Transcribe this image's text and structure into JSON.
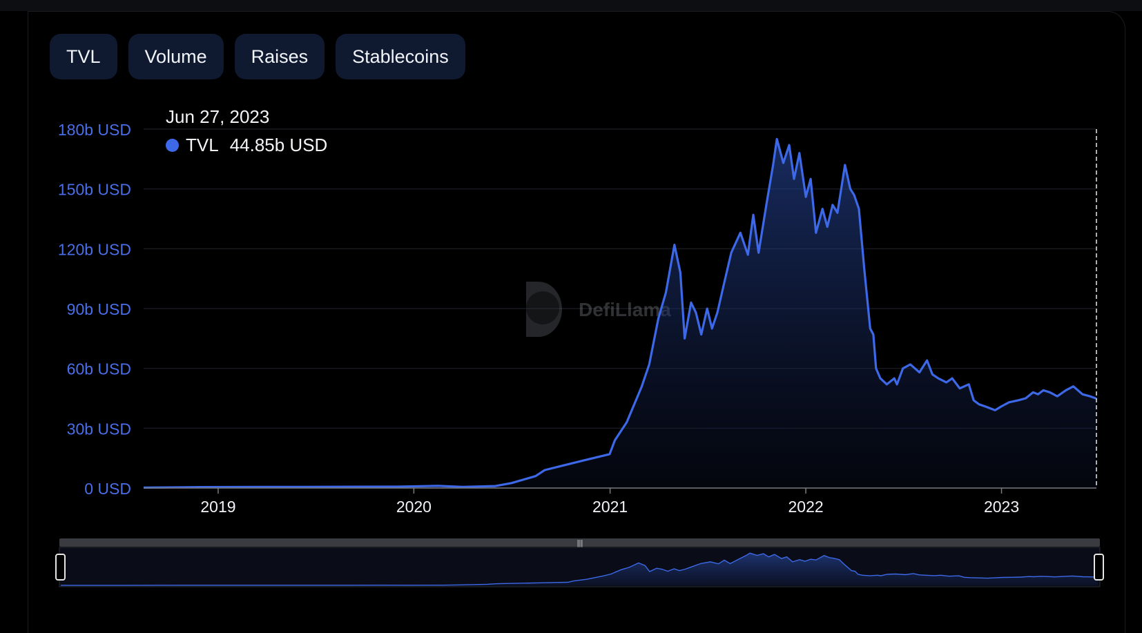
{
  "tabs": [
    {
      "label": "TVL",
      "active": true
    },
    {
      "label": "Volume",
      "active": false
    },
    {
      "label": "Raises",
      "active": false
    },
    {
      "label": "Stablecoins",
      "active": false
    }
  ],
  "watermark": "DefiLlama",
  "tooltip": {
    "date": "Jun 27, 2023",
    "series": "TVL",
    "value": "44.85b USD"
  },
  "colors": {
    "line": "#3d69e8",
    "axis_label": "#4a6ee8",
    "grid": "#1d1f24",
    "tab": "#0f1a30",
    "tab_active": "#1f4b9e"
  },
  "chart_data": {
    "type": "area",
    "series": [
      {
        "name": "TVL",
        "x": [
          "2018-08-15",
          "2018-12-01",
          "2019-06-01",
          "2019-12-01",
          "2020-02-15",
          "2020-04-01",
          "2020-06-01",
          "2020-07-01",
          "2020-08-15",
          "2020-09-01",
          "2020-10-01",
          "2020-11-15",
          "2020-12-31",
          "2021-01-10",
          "2021-02-01",
          "2021-02-15",
          "2021-03-01",
          "2021-03-15",
          "2021-04-01",
          "2021-04-15",
          "2021-05-01",
          "2021-05-12",
          "2021-05-20",
          "2021-06-01",
          "2021-06-10",
          "2021-06-20",
          "2021-07-01",
          "2021-07-10",
          "2021-07-20",
          "2021-08-01",
          "2021-08-15",
          "2021-09-01",
          "2021-09-15",
          "2021-09-25",
          "2021-10-05",
          "2021-10-20",
          "2021-11-01",
          "2021-11-08",
          "2021-11-20",
          "2021-12-01",
          "2021-12-10",
          "2021-12-20",
          "2022-01-01",
          "2022-01-10",
          "2022-01-20",
          "2022-02-01",
          "2022-02-10",
          "2022-02-20",
          "2022-03-01",
          "2022-03-15",
          "2022-03-25",
          "2022-04-01",
          "2022-04-10",
          "2022-04-20",
          "2022-05-01",
          "2022-05-07",
          "2022-05-12",
          "2022-05-20",
          "2022-06-01",
          "2022-06-15",
          "2022-06-20",
          "2022-07-01",
          "2022-07-15",
          "2022-08-01",
          "2022-08-15",
          "2022-08-25",
          "2022-09-05",
          "2022-09-20",
          "2022-10-01",
          "2022-10-15",
          "2022-11-01",
          "2022-11-10",
          "2022-11-20",
          "2022-12-01",
          "2022-12-20",
          "2023-01-01",
          "2023-01-15",
          "2023-02-01",
          "2023-02-15",
          "2023-03-01",
          "2023-03-10",
          "2023-03-20",
          "2023-04-01",
          "2023-04-15",
          "2023-05-01",
          "2023-05-15",
          "2023-06-01",
          "2023-06-15",
          "2023-06-27"
        ],
        "values": [
          0.2,
          0.5,
          0.6,
          0.7,
          1.1,
          0.6,
          1.0,
          2.5,
          6,
          9,
          11,
          14,
          17,
          24,
          33,
          42,
          51,
          62,
          85,
          98,
          122,
          108,
          75,
          93,
          88,
          77,
          90,
          80,
          88,
          102,
          118,
          128,
          117,
          137,
          118,
          143,
          162,
          175,
          163,
          172,
          155,
          168,
          146,
          155,
          128,
          140,
          131,
          142,
          138,
          162,
          150,
          147,
          140,
          110,
          80,
          77,
          60,
          55,
          52,
          55,
          52,
          60,
          62,
          58,
          64,
          57,
          55,
          53,
          55,
          50,
          52,
          44,
          42,
          41,
          39,
          41,
          43,
          44,
          45,
          48,
          47,
          49,
          48,
          46,
          49,
          51,
          47,
          46,
          44.85
        ]
      }
    ],
    "x_ticks": [
      "2019",
      "2020",
      "2021",
      "2022",
      "2023"
    ],
    "y_ticks": [
      "0 USD",
      "30b USD",
      "60b USD",
      "90b USD",
      "120b USD",
      "150b USD",
      "180b USD"
    ],
    "ylim": [
      0,
      180
    ],
    "xlim": [
      "2018-08-15",
      "2023-06-27"
    ],
    "grid": true,
    "crosshair": "2023-06-27"
  }
}
